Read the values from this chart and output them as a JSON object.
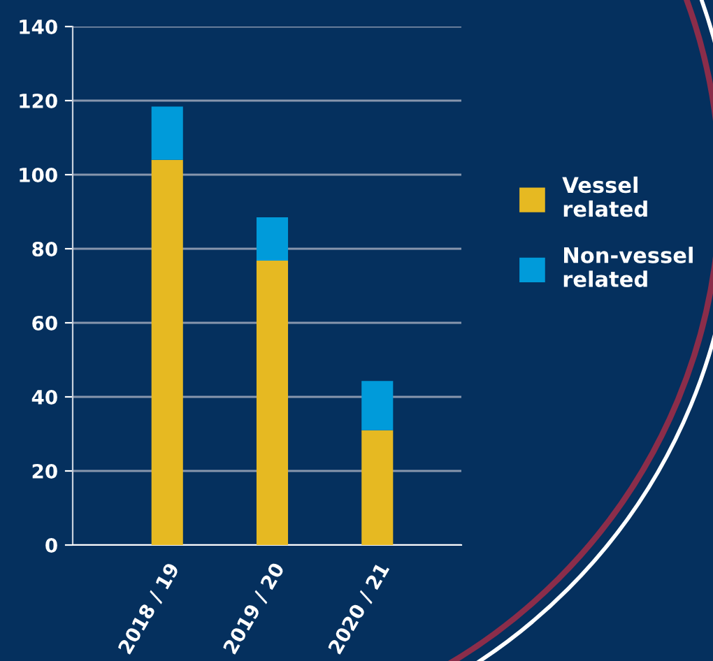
{
  "chart_data": {
    "type": "bar",
    "stacked": true,
    "categories": [
      "2018 / 19",
      "2019 / 20",
      "2020 / 21"
    ],
    "series": [
      {
        "name": "Vessel\nrelated",
        "color": "#e6b922",
        "values": [
          104,
          76.8,
          31
        ]
      },
      {
        "name": "Non-vessel\nrelated",
        "color": "#009bda",
        "values": [
          14.4,
          11.7,
          13.3
        ]
      }
    ],
    "ylim": [
      0,
      140
    ],
    "yticks": [
      0,
      20,
      40,
      60,
      80,
      100,
      120,
      140
    ],
    "grid": "y",
    "legend": "right"
  }
}
